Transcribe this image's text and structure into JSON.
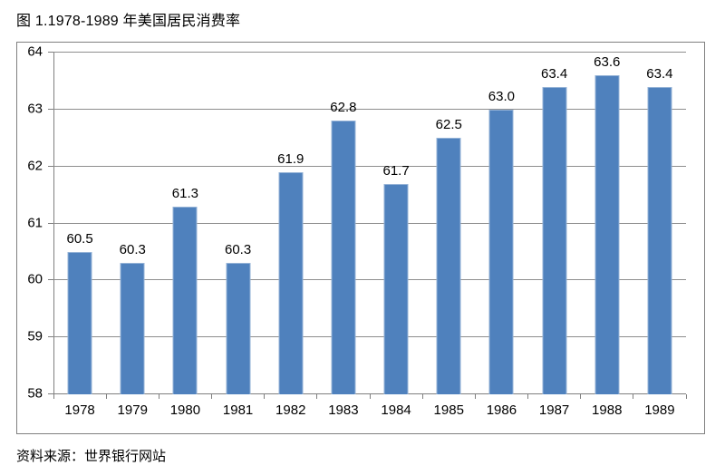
{
  "title": "图 1.1978-1989 年美国居民消费率",
  "source": "资料来源：世界银行网站",
  "colors": {
    "bar_fill": "#4F81BD",
    "bar_border": "#95B3D7",
    "gridline": "#8e8e8e",
    "axis": "#7f7f7f",
    "frame": "#808080",
    "text": "#000000"
  },
  "chart_data": {
    "type": "bar",
    "title": "图 1.1978-1989 年美国居民消费率",
    "categories": [
      "1978",
      "1979",
      "1980",
      "1981",
      "1982",
      "1983",
      "1984",
      "1985",
      "1986",
      "1987",
      "1988",
      "1989"
    ],
    "values": [
      60.5,
      60.3,
      61.3,
      60.3,
      61.9,
      62.8,
      61.7,
      62.5,
      63.0,
      63.4,
      63.6,
      63.4
    ],
    "xlabel": "",
    "ylabel": "",
    "ylim": [
      58,
      64
    ],
    "ytick_step": 1,
    "ytick_labels": [
      "58",
      "59",
      "60",
      "61",
      "62",
      "63",
      "64"
    ],
    "grid": true,
    "legend": false,
    "data_labels": true,
    "data_label_decimals": 1,
    "source_note": "资料来源：世界银行网站"
  }
}
